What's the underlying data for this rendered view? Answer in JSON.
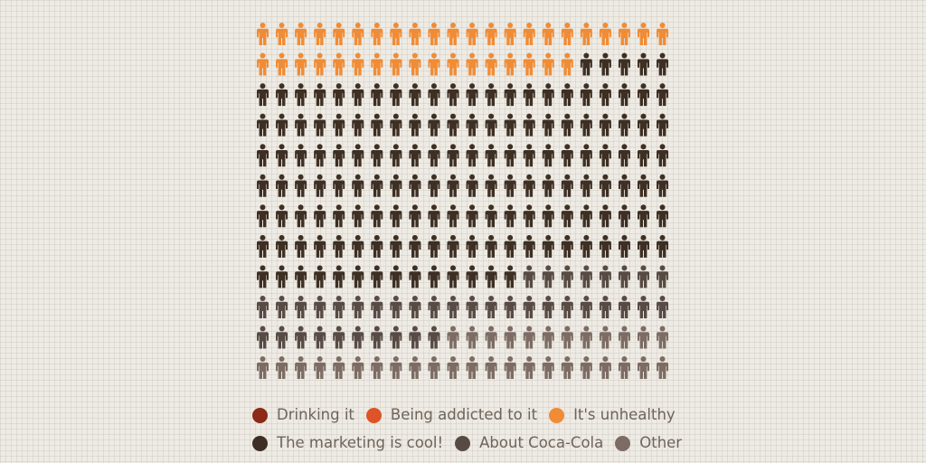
{
  "chart_data": {
    "type": "pictogram",
    "grid": {
      "rows": 12,
      "columns": 22
    },
    "unit_icon": "person-icon",
    "series": [
      {
        "name": "Drinking it",
        "count": 0,
        "color": "#8b2a17"
      },
      {
        "name": "Being addicted to it",
        "count": 0,
        "color": "#dc5427"
      },
      {
        "name": "It's unhealthy",
        "count": 39,
        "color": "#f08c35"
      },
      {
        "name": "The marketing is cool!",
        "count": 151,
        "color": "#3d2f23"
      },
      {
        "name": "About Coca-Cola",
        "count": 40,
        "color": "#574b44"
      },
      {
        "name": "Other",
        "count": 34,
        "color": "#7c6c64"
      }
    ],
    "legend": {
      "rows": [
        [
          "Drinking it",
          "Being addicted to it",
          "It's unhealthy"
        ],
        [
          "The marketing is cool!",
          "About Coca-Cola",
          "Other"
        ]
      ],
      "position": "bottom"
    }
  }
}
